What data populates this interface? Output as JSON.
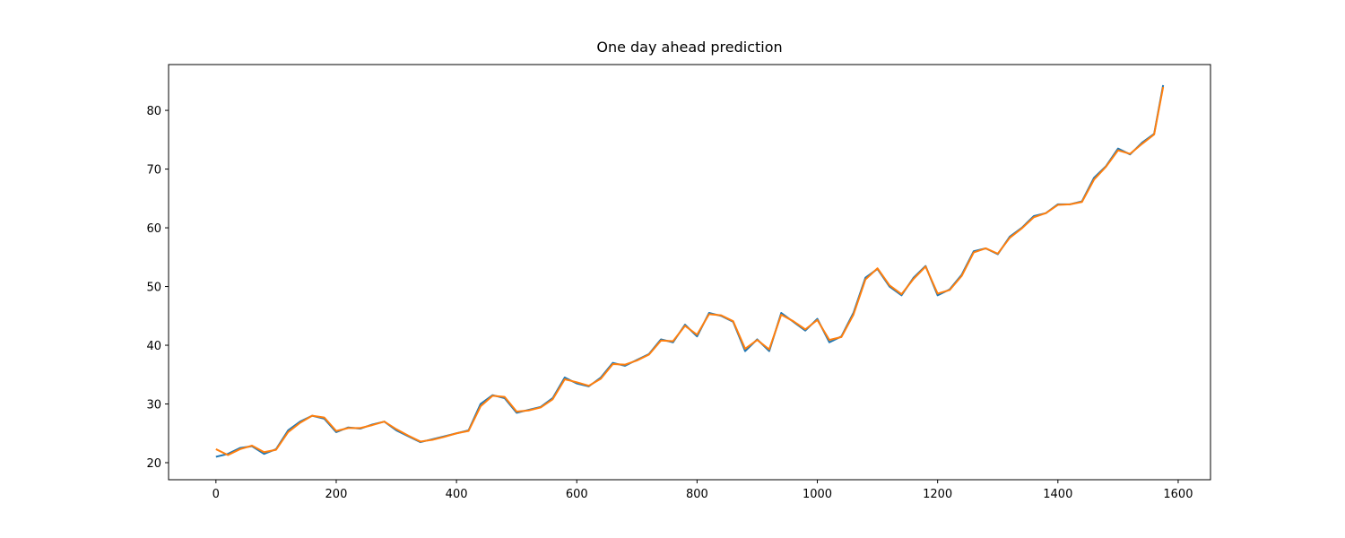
{
  "chart_data": {
    "type": "line",
    "title": "One day ahead prediction",
    "x": [
      0,
      20,
      40,
      60,
      80,
      100,
      120,
      140,
      160,
      180,
      200,
      220,
      240,
      260,
      280,
      300,
      320,
      340,
      360,
      380,
      400,
      420,
      440,
      460,
      480,
      500,
      520,
      540,
      560,
      580,
      600,
      620,
      640,
      660,
      680,
      700,
      720,
      740,
      760,
      780,
      800,
      820,
      840,
      860,
      880,
      900,
      920,
      940,
      960,
      980,
      1000,
      1020,
      1040,
      1060,
      1080,
      1100,
      1120,
      1140,
      1160,
      1180,
      1200,
      1220,
      1240,
      1260,
      1280,
      1300,
      1320,
      1340,
      1360,
      1380,
      1400,
      1420,
      1440,
      1460,
      1480,
      1500,
      1520,
      1540,
      1560,
      1575
    ],
    "series": [
      {
        "color": "#1f77b4",
        "values": [
          21,
          21.5,
          22.5,
          22.8,
          21.5,
          22.3,
          25.5,
          27,
          28,
          27.5,
          25.2,
          26,
          25.8,
          26.5,
          27,
          25.5,
          24.5,
          23.5,
          24,
          24.5,
          25,
          25.5,
          30,
          31.5,
          31,
          28.5,
          29,
          29.5,
          31,
          34.5,
          33.5,
          33,
          34.5,
          37,
          36.5,
          37.5,
          38.5,
          41,
          40.5,
          43.5,
          41.5,
          45.5,
          45,
          44,
          39,
          41,
          39,
          45.5,
          44,
          42.5,
          44.5,
          40.5,
          41.5,
          45.5,
          51.5,
          53,
          50,
          48.5,
          51.5,
          53.5,
          48.5,
          49.5,
          52,
          56,
          56.5,
          55.5,
          58.5,
          60,
          62,
          62.5,
          64,
          64,
          64.5,
          68.5,
          70.5,
          73.5,
          72.5,
          74.5,
          76,
          84.3
        ]
      },
      {
        "color": "#ff7f0e",
        "values": [
          22.3,
          21.3,
          22.3,
          22.9,
          21.8,
          22.2,
          25.2,
          26.8,
          28,
          27.7,
          25.4,
          25.9,
          25.9,
          26.4,
          27,
          25.7,
          24.6,
          23.6,
          23.9,
          24.4,
          25,
          25.4,
          29.6,
          31.4,
          31.2,
          28.7,
          28.9,
          29.4,
          30.8,
          34.2,
          33.7,
          33.1,
          34.3,
          36.8,
          36.7,
          37.4,
          38.4,
          40.8,
          40.7,
          43.3,
          41.8,
          45.3,
          45.1,
          44.1,
          39.4,
          40.9,
          39.3,
          45.2,
          44.1,
          42.7,
          44.3,
          40.9,
          41.4,
          45.2,
          51.2,
          53.1,
          50.2,
          48.7,
          51.3,
          53.4,
          48.8,
          49.4,
          51.8,
          55.8,
          56.5,
          55.6,
          58.3,
          59.9,
          61.8,
          62.5,
          63.9,
          64,
          64.4,
          68.2,
          70.4,
          73.2,
          72.6,
          74.3,
          75.9,
          84
        ]
      }
    ],
    "xlim": [
      -78.75,
      1653.75
    ],
    "ylim": [
      17.1,
      87.8
    ],
    "xticks": [
      0,
      200,
      400,
      600,
      800,
      1000,
      1200,
      1400,
      1600
    ],
    "yticks": [
      20,
      30,
      40,
      50,
      60,
      70,
      80
    ],
    "grid": false
  }
}
